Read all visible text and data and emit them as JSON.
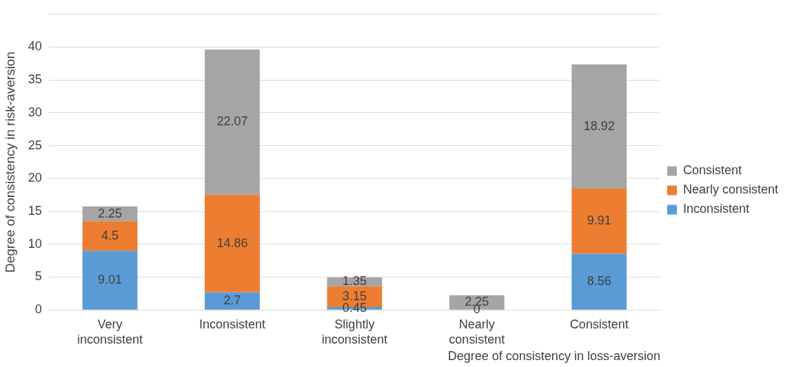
{
  "chart_data": {
    "type": "bar",
    "stacked": true,
    "categories": [
      "Very inconsistent",
      "Inconsistent",
      "Slightly inconsistent",
      "Nearly consistent",
      "Consistent"
    ],
    "series": [
      {
        "name": "Inconsistent",
        "color": "#5b9bd5",
        "values": [
          9.01,
          2.7,
          0.45,
          0,
          8.56
        ]
      },
      {
        "name": "Nearly consistent",
        "color": "#ed7d31",
        "values": [
          4.5,
          14.86,
          3.15,
          null,
          9.91
        ]
      },
      {
        "name": "Consistent",
        "color": "#a5a5a5",
        "values": [
          2.25,
          22.07,
          1.35,
          2.25,
          18.92
        ]
      }
    ],
    "ylim": [
      0,
      45
    ],
    "yticks": [
      0,
      5,
      10,
      15,
      20,
      25,
      30,
      35,
      40,
      {
        "value": 45,
        "label": null
      }
    ],
    "ylabel": "Degree of consistency in risk-aversion",
    "xlabel": "Degree of consistency in loss-aversion",
    "grid": "y",
    "legend": "right",
    "data_labels": true
  }
}
